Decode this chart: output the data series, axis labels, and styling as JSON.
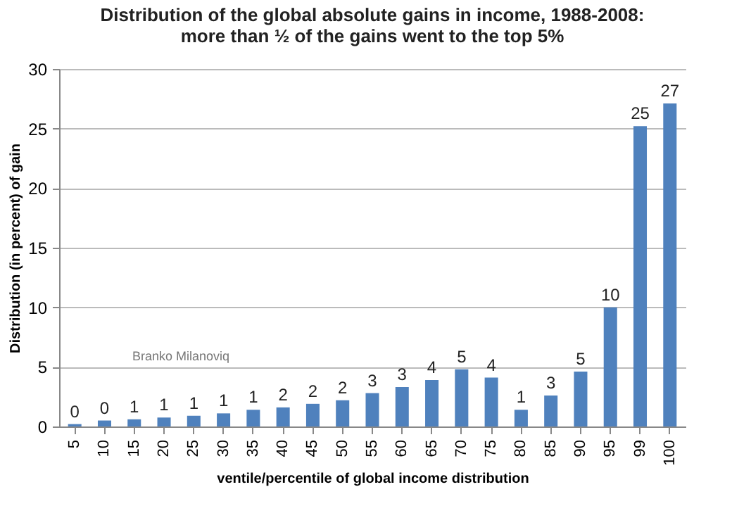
{
  "chart_data": {
    "type": "bar",
    "title": [
      "Distribution of the global absolute gains in income, 1988-2008:",
      "more than ½ of the gains went to the top 5%"
    ],
    "xlabel": "ventile/percentile of global income distribution",
    "ylabel": "Distribution (in percent) of gain",
    "categories": [
      "5",
      "10",
      "15",
      "20",
      "25",
      "30",
      "35",
      "40",
      "45",
      "50",
      "55",
      "60",
      "65",
      "70",
      "75",
      "80",
      "85",
      "90",
      "95",
      "99",
      "100"
    ],
    "values": [
      0.2,
      0.5,
      0.6,
      0.75,
      0.9,
      1.1,
      1.4,
      1.6,
      1.9,
      2.2,
      2.8,
      3.3,
      3.9,
      4.8,
      4.1,
      1.4,
      2.6,
      4.6,
      10.0,
      25.2,
      27.1
    ],
    "value_labels": [
      "0",
      "0",
      "1",
      "1",
      "1",
      "1",
      "1",
      "2",
      "2",
      "2",
      "3",
      "3",
      "4",
      "5",
      "4",
      "1",
      "3",
      "5",
      "10",
      "25",
      "27"
    ],
    "color": "#4f81bd",
    "ylim": [
      0,
      30
    ],
    "yticks": [
      0,
      5,
      10,
      15,
      20,
      25,
      30
    ],
    "grid": "y",
    "annotations": [
      "Branko Milanoviq"
    ]
  }
}
